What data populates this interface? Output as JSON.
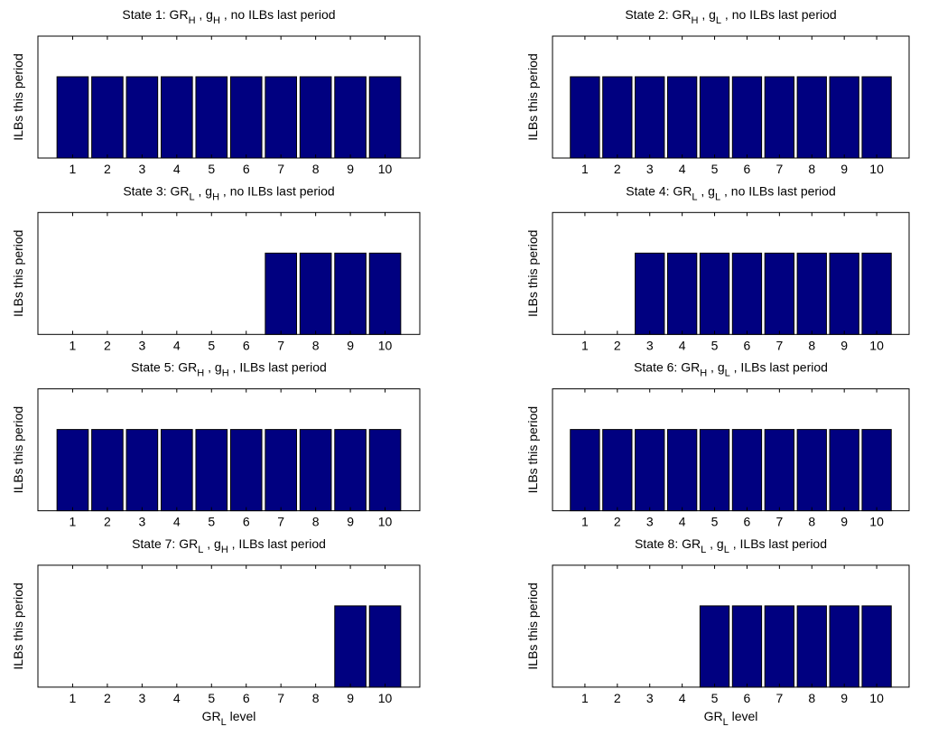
{
  "chart_data": [
    {
      "type": "bar",
      "title": [
        {
          "text": "State 1: GR"
        },
        {
          "sub": "H"
        },
        {
          "text": " , g"
        },
        {
          "sub": "H"
        },
        {
          "text": " , no ILBs last period"
        }
      ],
      "ylabel": "ILBs this period",
      "x": [
        1,
        2,
        3,
        4,
        5,
        6,
        7,
        8,
        9,
        10
      ],
      "values": [
        1,
        1,
        1,
        1,
        1,
        1,
        1,
        1,
        1,
        1
      ],
      "color": "#000080",
      "xlim": [
        0,
        11
      ],
      "ylim": [
        0,
        1.5
      ],
      "xticks": [
        1,
        2,
        3,
        4,
        5,
        6,
        7,
        8,
        9,
        10
      ]
    },
    {
      "type": "bar",
      "title": [
        {
          "text": "State 2: GR"
        },
        {
          "sub": "H"
        },
        {
          "text": " , g"
        },
        {
          "sub": "L"
        },
        {
          "text": " , no ILBs last period"
        }
      ],
      "ylabel": "ILBs this period",
      "x": [
        1,
        2,
        3,
        4,
        5,
        6,
        7,
        8,
        9,
        10
      ],
      "values": [
        1,
        1,
        1,
        1,
        1,
        1,
        1,
        1,
        1,
        1
      ],
      "color": "#000080",
      "xlim": [
        0,
        11
      ],
      "ylim": [
        0,
        1.5
      ],
      "xticks": [
        1,
        2,
        3,
        4,
        5,
        6,
        7,
        8,
        9,
        10
      ]
    },
    {
      "type": "bar",
      "title": [
        {
          "text": "State 3: GR"
        },
        {
          "sub": "L"
        },
        {
          "text": " , g"
        },
        {
          "sub": "H"
        },
        {
          "text": " , no ILBs last period"
        }
      ],
      "ylabel": "ILBs this period",
      "x": [
        1,
        2,
        3,
        4,
        5,
        6,
        7,
        8,
        9,
        10
      ],
      "values": [
        0,
        0,
        0,
        0,
        0,
        0,
        1,
        1,
        1,
        1
      ],
      "color": "#000080",
      "xlim": [
        0,
        11
      ],
      "ylim": [
        0,
        1.5
      ],
      "xticks": [
        1,
        2,
        3,
        4,
        5,
        6,
        7,
        8,
        9,
        10
      ]
    },
    {
      "type": "bar",
      "title": [
        {
          "text": "State 4: GR"
        },
        {
          "sub": "L"
        },
        {
          "text": " , g"
        },
        {
          "sub": "L"
        },
        {
          "text": " , no ILBs last period"
        }
      ],
      "ylabel": "ILBs this period",
      "x": [
        1,
        2,
        3,
        4,
        5,
        6,
        7,
        8,
        9,
        10
      ],
      "values": [
        0,
        0,
        1,
        1,
        1,
        1,
        1,
        1,
        1,
        1
      ],
      "color": "#000080",
      "xlim": [
        0,
        11
      ],
      "ylim": [
        0,
        1.5
      ],
      "xticks": [
        1,
        2,
        3,
        4,
        5,
        6,
        7,
        8,
        9,
        10
      ]
    },
    {
      "type": "bar",
      "title": [
        {
          "text": "State 5: GR"
        },
        {
          "sub": "H"
        },
        {
          "text": " , g"
        },
        {
          "sub": "H"
        },
        {
          "text": " , ILBs last period"
        }
      ],
      "ylabel": "ILBs this period",
      "x": [
        1,
        2,
        3,
        4,
        5,
        6,
        7,
        8,
        9,
        10
      ],
      "values": [
        1,
        1,
        1,
        1,
        1,
        1,
        1,
        1,
        1,
        1
      ],
      "color": "#000080",
      "xlim": [
        0,
        11
      ],
      "ylim": [
        0,
        1.5
      ],
      "xticks": [
        1,
        2,
        3,
        4,
        5,
        6,
        7,
        8,
        9,
        10
      ]
    },
    {
      "type": "bar",
      "title": [
        {
          "text": "State 6: GR"
        },
        {
          "sub": "H"
        },
        {
          "text": " , g"
        },
        {
          "sub": "L"
        },
        {
          "text": " , ILBs last period"
        }
      ],
      "ylabel": "ILBs this period",
      "x": [
        1,
        2,
        3,
        4,
        5,
        6,
        7,
        8,
        9,
        10
      ],
      "values": [
        1,
        1,
        1,
        1,
        1,
        1,
        1,
        1,
        1,
        1
      ],
      "color": "#000080",
      "xlim": [
        0,
        11
      ],
      "ylim": [
        0,
        1.5
      ],
      "xticks": [
        1,
        2,
        3,
        4,
        5,
        6,
        7,
        8,
        9,
        10
      ]
    },
    {
      "type": "bar",
      "title": [
        {
          "text": "State 7: GR"
        },
        {
          "sub": "L"
        },
        {
          "text": " , g"
        },
        {
          "sub": "H"
        },
        {
          "text": " , ILBs last period"
        }
      ],
      "ylabel": "ILBs this period",
      "xlabel": [
        {
          "text": "GR"
        },
        {
          "sub": "L"
        },
        {
          "text": " level"
        }
      ],
      "x": [
        1,
        2,
        3,
        4,
        5,
        6,
        7,
        8,
        9,
        10
      ],
      "values": [
        0,
        0,
        0,
        0,
        0,
        0,
        0,
        0,
        1,
        1
      ],
      "color": "#000080",
      "xlim": [
        0,
        11
      ],
      "ylim": [
        0,
        1.5
      ],
      "xticks": [
        1,
        2,
        3,
        4,
        5,
        6,
        7,
        8,
        9,
        10
      ]
    },
    {
      "type": "bar",
      "title": [
        {
          "text": "State 8: GR"
        },
        {
          "sub": "L"
        },
        {
          "text": " , g"
        },
        {
          "sub": "L"
        },
        {
          "text": " , ILBs last period"
        }
      ],
      "ylabel": "ILBs this period",
      "xlabel": [
        {
          "text": "GR"
        },
        {
          "sub": "L"
        },
        {
          "text": " level"
        }
      ],
      "x": [
        1,
        2,
        3,
        4,
        5,
        6,
        7,
        8,
        9,
        10
      ],
      "values": [
        0,
        0,
        0,
        0,
        1,
        1,
        1,
        1,
        1,
        1
      ],
      "color": "#000080",
      "xlim": [
        0,
        11
      ],
      "ylim": [
        0,
        1.5
      ],
      "xticks": [
        1,
        2,
        3,
        4,
        5,
        6,
        7,
        8,
        9,
        10
      ]
    }
  ]
}
